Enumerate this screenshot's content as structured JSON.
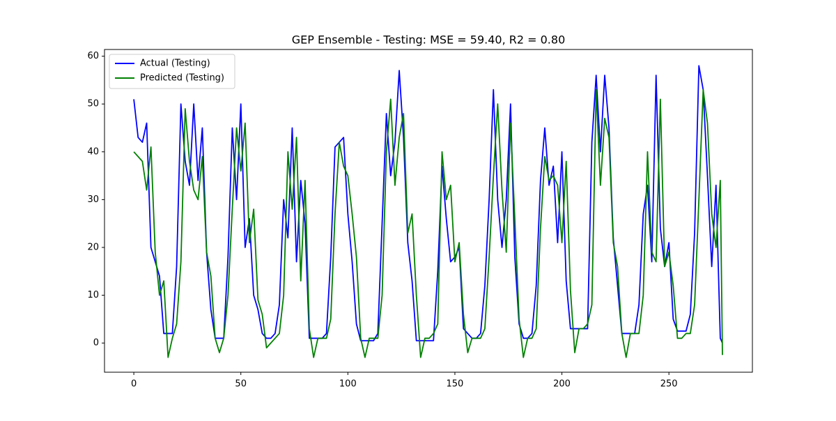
{
  "chart_data": {
    "type": "line",
    "title": "GEP Ensemble - Testing: MSE = 59.40, R2 = 0.80",
    "x": [
      0,
      2,
      4,
      6,
      8,
      10,
      12,
      14,
      16,
      18,
      20,
      22,
      24,
      26,
      28,
      30,
      32,
      34,
      36,
      38,
      40,
      42,
      44,
      46,
      48,
      50,
      52,
      54,
      56,
      58,
      60,
      62,
      64,
      66,
      68,
      70,
      72,
      74,
      76,
      78,
      80,
      82,
      84,
      86,
      88,
      90,
      92,
      94,
      96,
      98,
      100,
      102,
      104,
      106,
      108,
      110,
      112,
      114,
      116,
      118,
      120,
      122,
      124,
      126,
      128,
      130,
      132,
      134,
      136,
      138,
      140,
      142,
      144,
      146,
      148,
      150,
      152,
      154,
      156,
      158,
      160,
      162,
      164,
      166,
      168,
      170,
      172,
      174,
      176,
      178,
      180,
      182,
      184,
      186,
      188,
      190,
      192,
      194,
      196,
      198,
      200,
      202,
      204,
      206,
      208,
      210,
      212,
      214,
      216,
      218,
      220,
      222,
      224,
      226,
      228,
      230,
      232,
      234,
      236,
      238,
      240,
      242,
      244,
      246,
      248,
      250,
      252,
      254,
      256,
      258,
      260,
      262,
      264,
      266,
      268,
      270,
      272,
      274,
      275
    ],
    "series": [
      {
        "name": "Actual (Testing)",
        "color": "#0000ff",
        "values": [
          51,
          43,
          42,
          46,
          20,
          17,
          14,
          2,
          2,
          2,
          16,
          50,
          38,
          33,
          50,
          34,
          45,
          19,
          7,
          1,
          1,
          1,
          18,
          45,
          30,
          50,
          20,
          26,
          10,
          7,
          2,
          1,
          1,
          2,
          8,
          30,
          22,
          45,
          17,
          34,
          25,
          1,
          1,
          1,
          1,
          2,
          18,
          41,
          42,
          43,
          27,
          17,
          4,
          0.5,
          0.5,
          0.5,
          0.5,
          2,
          25,
          48,
          35,
          42,
          57,
          43,
          21,
          13,
          0.5,
          0.5,
          0.5,
          0.5,
          0.5,
          15,
          37,
          26,
          17,
          18,
          20,
          3,
          2,
          1,
          1,
          2,
          12,
          30,
          53,
          30,
          20,
          30,
          50,
          18,
          4,
          1,
          1,
          2,
          12,
          34,
          45,
          33,
          37,
          21,
          40,
          13,
          3,
          3,
          3,
          3,
          3,
          42,
          56,
          40,
          56,
          45,
          22,
          12,
          2,
          2,
          2,
          2,
          8,
          27,
          33,
          17,
          56,
          24,
          16,
          21,
          5,
          2.5,
          2.5,
          2.5,
          6,
          23,
          58,
          53,
          35,
          16,
          33,
          1,
          0
        ]
      },
      {
        "name": "Predicted (Testing)",
        "color": "#008000",
        "values": [
          40,
          39,
          38,
          32,
          41,
          19,
          10,
          13,
          -3,
          1,
          4,
          17,
          49,
          38,
          32,
          30,
          39,
          19,
          14,
          1,
          -2,
          1,
          10,
          28,
          45,
          36,
          46,
          21,
          28,
          9,
          6,
          -1,
          0,
          1,
          2,
          10,
          40,
          28,
          43,
          13,
          34,
          3,
          -3,
          1,
          1,
          1,
          5,
          27,
          42,
          37,
          35,
          27,
          18,
          1,
          -3,
          1,
          1,
          1,
          10,
          40,
          51,
          33,
          43,
          48,
          23,
          27,
          10,
          -3,
          1,
          1,
          2,
          4,
          40,
          30,
          33,
          17,
          21,
          6,
          -2,
          1,
          1,
          1,
          3,
          18,
          35,
          50,
          32,
          19,
          46,
          26,
          5,
          -3,
          1,
          1,
          3,
          24,
          39,
          34,
          35,
          33,
          21,
          38,
          11,
          -2,
          3,
          3,
          4,
          8,
          53,
          33,
          47,
          43,
          21,
          16,
          2,
          -3,
          2,
          2,
          2,
          10,
          40,
          19,
          17,
          51,
          16,
          19,
          12,
          1,
          1,
          2,
          2,
          8,
          30,
          53,
          46,
          27,
          20,
          34,
          -2.5
        ]
      }
    ],
    "xlim": [
      -13.7,
      289
    ],
    "ylim": [
      -6.1,
      61.4
    ],
    "xticks": [
      0,
      50,
      100,
      150,
      200,
      250
    ],
    "yticks": [
      0,
      10,
      20,
      30,
      40,
      50,
      60
    ],
    "legend": "upper left",
    "grid": false
  }
}
